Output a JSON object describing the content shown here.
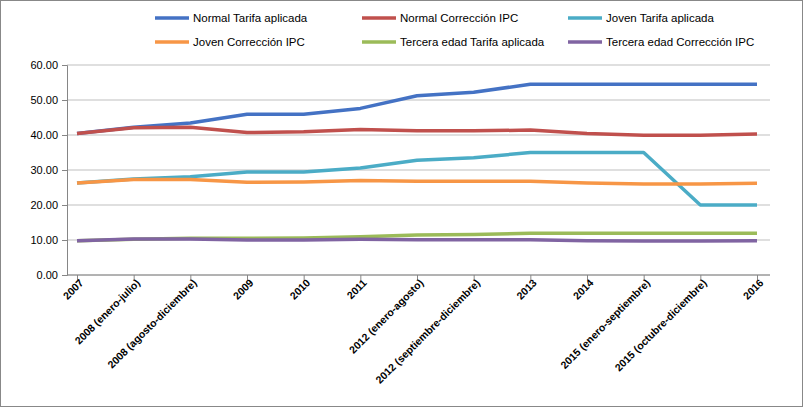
{
  "chart_data": {
    "type": "line",
    "categories": [
      "2007",
      "2008 (enero-julio)",
      "2008 (agosto-diciembre)",
      "2009",
      "2010",
      "2011",
      "2012 (enero-agosto)",
      "2012 (septiembre-diciembre)",
      "2013",
      "2014",
      "2015 (enero-septiembre)",
      "2015 (octubre-diciembre)",
      "2016"
    ],
    "series": [
      {
        "name": "Normal Tarifa aplicada",
        "color": "#4472c4",
        "values": [
          40.4,
          42.2,
          43.4,
          45.9,
          45.9,
          47.6,
          51.2,
          52.2,
          54.5,
          54.5,
          54.5,
          54.5,
          54.5
        ]
      },
      {
        "name": "Normal Corrección IPC",
        "color": "#c0504d",
        "values": [
          40.4,
          42.1,
          42.2,
          40.7,
          40.9,
          41.6,
          41.2,
          41.2,
          41.4,
          40.4,
          39.9,
          39.9,
          40.3
        ]
      },
      {
        "name": "Joven Tarifa aplicada",
        "color": "#4bacc6",
        "values": [
          26.3,
          27.4,
          28.1,
          29.4,
          29.4,
          30.6,
          32.8,
          33.5,
          35.0,
          35.0,
          35.0,
          20.0,
          20.0
        ]
      },
      {
        "name": "Joven Corrección IPC",
        "color": "#f79646",
        "values": [
          26.3,
          27.3,
          27.3,
          26.5,
          26.6,
          27.0,
          26.8,
          26.8,
          26.8,
          26.3,
          26.0,
          26.0,
          26.2
        ]
      },
      {
        "name": "Tercera edad Tarifa aplicada",
        "color": "#9bbb59",
        "values": [
          9.8,
          10.2,
          10.5,
          10.5,
          10.6,
          10.9,
          11.4,
          11.6,
          11.9,
          11.9,
          11.9,
          11.9,
          11.9
        ]
      },
      {
        "name": "Tercera edad Corrección IPC",
        "color": "#8064a2",
        "values": [
          9.8,
          10.3,
          10.3,
          10.0,
          10.0,
          10.2,
          10.1,
          10.1,
          10.1,
          9.8,
          9.7,
          9.7,
          9.8
        ]
      }
    ],
    "ylim": [
      0,
      60
    ],
    "yticks": [
      {
        "value": 0,
        "label": "0.00"
      },
      {
        "value": 10,
        "label": "10.00"
      },
      {
        "value": 20,
        "label": "20.00"
      },
      {
        "value": 30,
        "label": "30.00"
      },
      {
        "value": 40,
        "label": "40.00"
      },
      {
        "value": 50,
        "label": "50.00"
      },
      {
        "value": 60,
        "label": "60.00"
      }
    ],
    "grid": true,
    "legend": "top"
  }
}
